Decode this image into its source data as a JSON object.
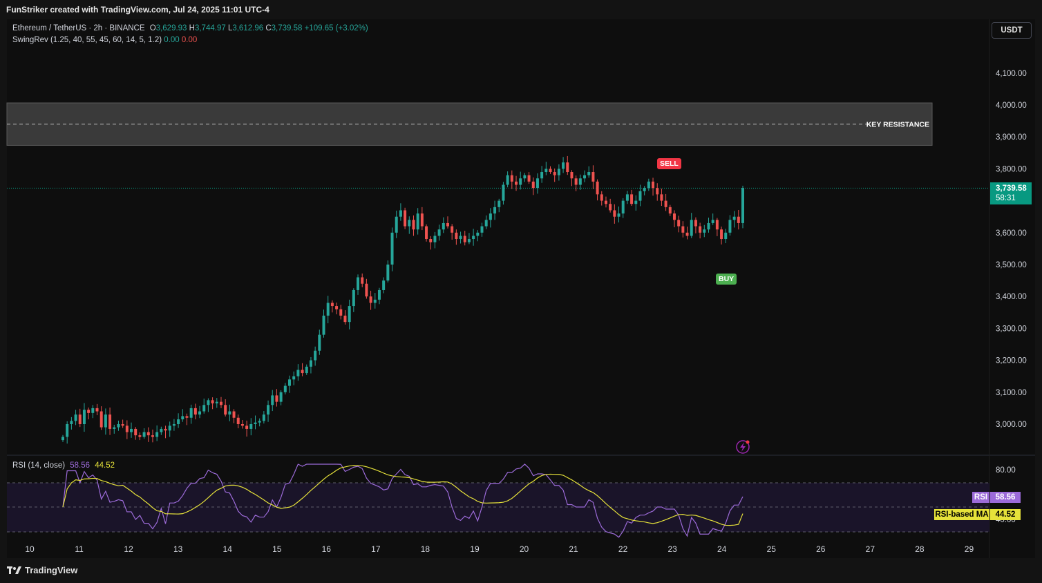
{
  "header": {
    "title": "FunStriker created with TradingView.com, Jul 24, 2025 11:01 UTC-4"
  },
  "legend": {
    "symbol": "Ethereum / TetherUS · 2h · BINANCE",
    "o_label": "O",
    "o": "3,629.93",
    "h_label": "H",
    "h": "3,744.97",
    "l_label": "L",
    "l": "3,612.96",
    "c_label": "C",
    "c": "3,739.58",
    "change": "+109.65 (+3.02%)",
    "indicator": "SwingRev (1.25, 40, 55, 45, 60, 14, 5, 1.2)",
    "ind_v1": "0.00",
    "ind_v2": "0.00"
  },
  "currency_button": "USDT",
  "last_price": {
    "price": "3,739.58",
    "countdown": "58:31"
  },
  "zone_label": "KEY RESISTANCE",
  "signals": {
    "sell": "SELL",
    "buy": "BUY"
  },
  "rsi_legend": {
    "label": "RSI (14, close)",
    "rsi": "58.56",
    "ma": "44.52"
  },
  "rsi_tags": {
    "rsi_name": "RSI",
    "rsi_value": "58.56",
    "ma_name": "RSI-based MA",
    "ma_value": "44.52"
  },
  "branding": "TradingView",
  "colors": {
    "up": "#26a69a",
    "down": "#ef5350",
    "rsi_line": "#9c6bd9",
    "rsi_ma": "#e6e23a",
    "sell": "#f23645",
    "buy": "#4caf50"
  },
  "chart_data": {
    "type": "candlestick",
    "symbol": "ETHUSDT",
    "interval": "2h",
    "price_axis": {
      "ticks": [
        "4,100.00",
        "4,000.00",
        "3,900.00",
        "3,800.00",
        "3,600.00",
        "3,500.00",
        "3,400.00",
        "3,300.00",
        "3,200.00",
        "3,100.00",
        "3,000.00"
      ],
      "range": [
        2920,
        4200
      ]
    },
    "date_axis": {
      "ticks": [
        "10",
        "11",
        "12",
        "13",
        "14",
        "15",
        "16",
        "17",
        "18",
        "19",
        "20",
        "21",
        "22",
        "23",
        "24",
        "25",
        "26",
        "27",
        "28",
        "29"
      ]
    },
    "resistance_zone": {
      "low": 3880,
      "high": 4000,
      "mid": 3940
    },
    "signals": [
      {
        "type": "SELL",
        "day": 22.8,
        "price": 3800
      },
      {
        "type": "BUY",
        "day": 24.1,
        "price": 3470
      }
    ],
    "closes": [
      2960,
      3000,
      3010,
      3030,
      3000,
      3045,
      3035,
      3050,
      3040,
      2990,
      3030,
      2985,
      2990,
      3000,
      2995,
      2975,
      2985,
      2965,
      2960,
      2975,
      2965,
      2960,
      2975,
      2985,
      2980,
      2995,
      3000,
      3015,
      3025,
      3020,
      3050,
      3030,
      3040,
      3060,
      3075,
      3065,
      3070,
      3060,
      3030,
      3040,
      3020,
      3000,
      2995,
      2985,
      3000,
      3005,
      3010,
      3030,
      3060,
      3090,
      3070,
      3100,
      3120,
      3140,
      3150,
      3170,
      3160,
      3180,
      3200,
      3230,
      3280,
      3340,
      3380,
      3370,
      3360,
      3340,
      3320,
      3370,
      3420,
      3460,
      3440,
      3400,
      3380,
      3390,
      3420,
      3450,
      3500,
      3600,
      3650,
      3670,
      3620,
      3640,
      3610,
      3660,
      3620,
      3580,
      3570,
      3590,
      3610,
      3630,
      3620,
      3600,
      3580,
      3590,
      3570,
      3580,
      3590,
      3600,
      3620,
      3640,
      3660,
      3680,
      3700,
      3750,
      3780,
      3760,
      3750,
      3770,
      3780,
      3760,
      3740,
      3770,
      3790,
      3800,
      3790,
      3780,
      3800,
      3820,
      3790,
      3770,
      3750,
      3770,
      3780,
      3790,
      3760,
      3720,
      3700,
      3690,
      3670,
      3650,
      3660,
      3700,
      3720,
      3690,
      3700,
      3730,
      3740,
      3760,
      3740,
      3720,
      3700,
      3680,
      3660,
      3640,
      3620,
      3600,
      3590,
      3640,
      3620,
      3600,
      3610,
      3630,
      3640,
      3610,
      3580,
      3600,
      3640,
      3650,
      3630,
      3740
    ],
    "last_close": 3739.58,
    "rsi": {
      "name": "RSI (14, close)",
      "value": 58.56,
      "ma_name": "RSI-based MA",
      "ma_value": 44.52,
      "levels": [
        70,
        50,
        30
      ],
      "axis_ticks": [
        "80.00",
        "40.00"
      ]
    }
  }
}
